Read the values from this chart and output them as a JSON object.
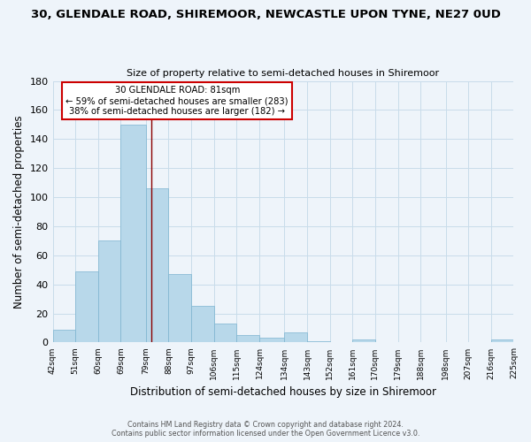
{
  "title": "30, GLENDALE ROAD, SHIREMOOR, NEWCASTLE UPON TYNE, NE27 0UD",
  "subtitle": "Size of property relative to semi-detached houses in Shiremoor",
  "xlabel": "Distribution of semi-detached houses by size in Shiremoor",
  "ylabel": "Number of semi-detached properties",
  "bar_color": "#b8d8ea",
  "bar_edgecolor": "#7cb4d0",
  "bins": [
    42,
    51,
    60,
    69,
    79,
    88,
    97,
    106,
    115,
    124,
    134,
    143,
    152,
    161,
    170,
    179,
    188,
    198,
    207,
    216,
    225
  ],
  "bin_labels": [
    "42sqm",
    "51sqm",
    "60sqm",
    "69sqm",
    "79sqm",
    "88sqm",
    "97sqm",
    "106sqm",
    "115sqm",
    "124sqm",
    "134sqm",
    "143sqm",
    "152sqm",
    "161sqm",
    "170sqm",
    "179sqm",
    "188sqm",
    "198sqm",
    "207sqm",
    "216sqm",
    "225sqm"
  ],
  "values": [
    9,
    49,
    70,
    150,
    106,
    47,
    25,
    13,
    5,
    3,
    7,
    1,
    0,
    2,
    0,
    0,
    0,
    0,
    0,
    2
  ],
  "property_line_x": 81,
  "ylim": [
    0,
    180
  ],
  "yticks": [
    0,
    20,
    40,
    60,
    80,
    100,
    120,
    140,
    160,
    180
  ],
  "annotation_title": "30 GLENDALE ROAD: 81sqm",
  "annotation_line1": "← 59% of semi-detached houses are smaller (283)",
  "annotation_line2": "38% of semi-detached houses are larger (182) →",
  "annotation_box_color": "#ffffff",
  "annotation_box_edgecolor": "#cc0000",
  "grid_color": "#c8dcea",
  "background_color": "#eef4fa",
  "footer_line1": "Contains HM Land Registry data © Crown copyright and database right 2024.",
  "footer_line2": "Contains public sector information licensed under the Open Government Licence v3.0."
}
